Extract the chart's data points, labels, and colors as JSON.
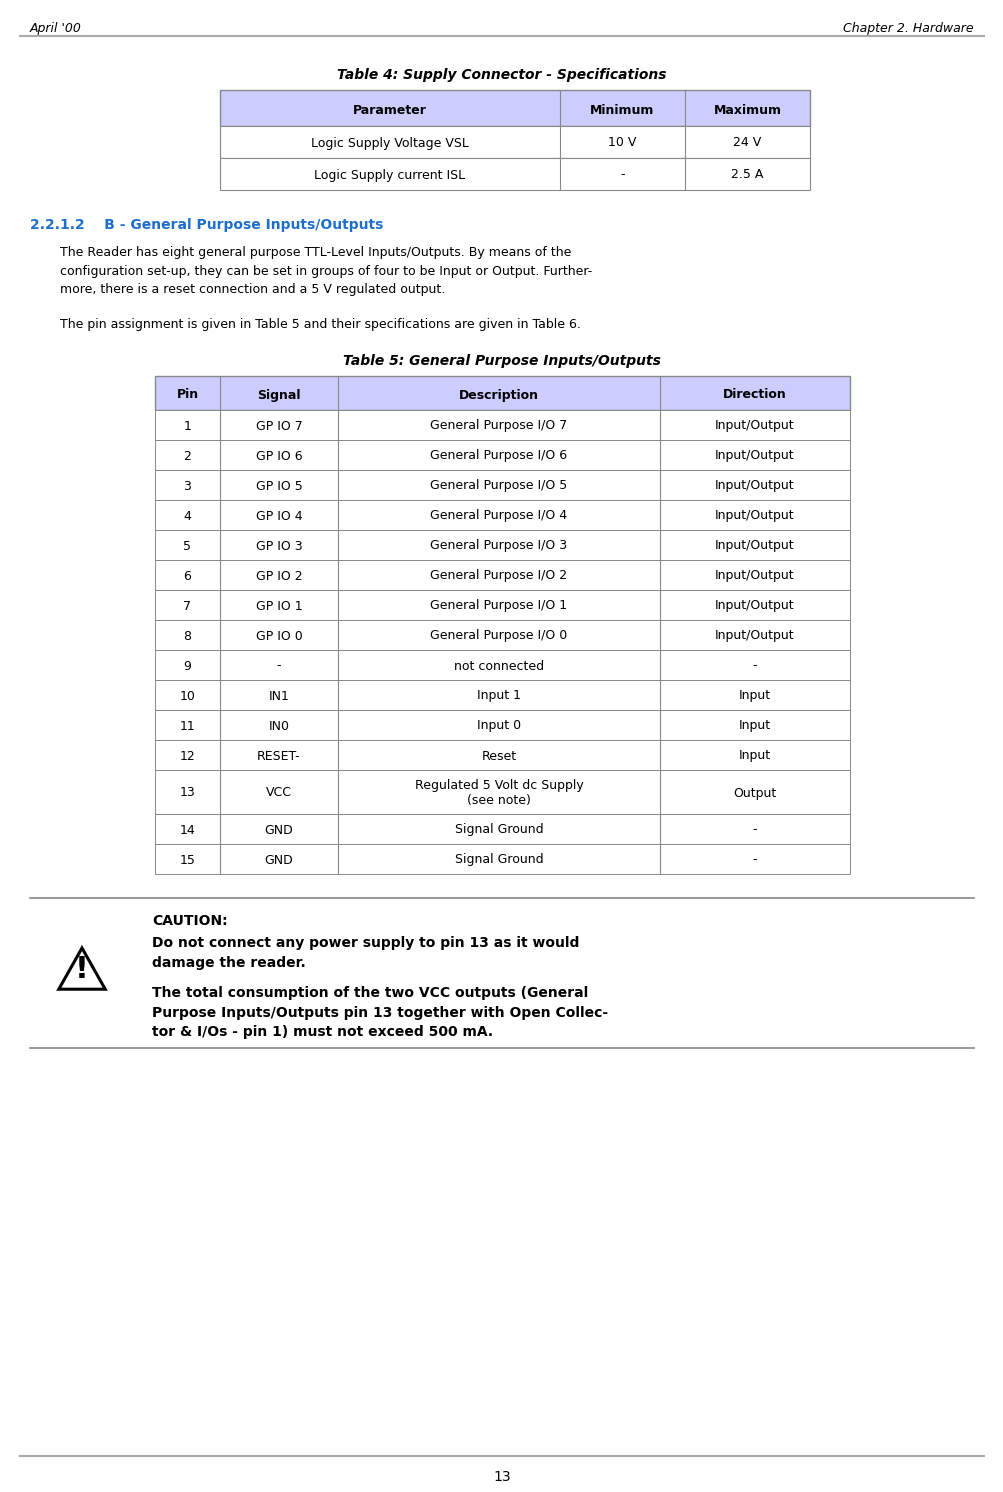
{
  "header_left": "April '00",
  "header_right": "Chapter 2. Hardware",
  "footer_page": "13",
  "table4_title": "Table 4: Supply Connector - Specifications",
  "table4_headers": [
    "Parameter",
    "Minimum",
    "Maximum"
  ],
  "table4_rows": [
    [
      "Logic Supply Voltage VSL",
      "10 V",
      "24 V"
    ],
    [
      "Logic Supply current ISL",
      "-",
      "2.5 A"
    ]
  ],
  "section_title": "2.2.1.2    B - General Purpose Inputs/Outputs",
  "section_color": "#1e6fcc",
  "body_text1": "The Reader has eight general purpose TTL-Level Inputs/Outputs. By means of the\nconfiguration set-up, they can be set in groups of four to be Input or Output. Further-\nmore, there is a reset connection and a 5 V regulated output.",
  "body_text2": "The pin assignment is given in Table 5 and their specifications are given in Table 6.",
  "table5_title": "Table 5: General Purpose Inputs/Outputs",
  "table5_headers": [
    "Pin",
    "Signal",
    "Description",
    "Direction"
  ],
  "table5_rows": [
    [
      "1",
      "GP IO 7",
      "General Purpose I/O 7",
      "Input/Output"
    ],
    [
      "2",
      "GP IO 6",
      "General Purpose I/O 6",
      "Input/Output"
    ],
    [
      "3",
      "GP IO 5",
      "General Purpose I/O 5",
      "Input/Output"
    ],
    [
      "4",
      "GP IO 4",
      "General Purpose I/O 4",
      "Input/Output"
    ],
    [
      "5",
      "GP IO 3",
      "General Purpose I/O 3",
      "Input/Output"
    ],
    [
      "6",
      "GP IO 2",
      "General Purpose I/O 2",
      "Input/Output"
    ],
    [
      "7",
      "GP IO 1",
      "General Purpose I/O 1",
      "Input/Output"
    ],
    [
      "8",
      "GP IO 0",
      "General Purpose I/O 0",
      "Input/Output"
    ],
    [
      "9",
      "-",
      "not connected",
      "-"
    ],
    [
      "10",
      "IN1",
      "Input 1",
      "Input"
    ],
    [
      "11",
      "IN0",
      "Input 0",
      "Input"
    ],
    [
      "12",
      "RESET-",
      "Reset",
      "Input"
    ],
    [
      "13",
      "VCC",
      "Regulated 5 Volt dc Supply\n(see note)",
      "Output"
    ],
    [
      "14",
      "GND",
      "Signal Ground",
      "-"
    ],
    [
      "15",
      "GND",
      "Signal Ground",
      "-"
    ]
  ],
  "caution_title": "CAUTION:",
  "caution_text1": "Do not connect any power supply to pin 13 as it would\ndamage the reader.",
  "caution_text2": "The total consumption of the two VCC outputs (General\nPurpose Inputs/Outputs pin 13 together with Open Collec-\ntor & I/Os - pin 1) must not exceed 500 mA.",
  "table_header_bg": "#ccccff",
  "table_row_bg_even": "#ffffff",
  "table_border": "#888888"
}
